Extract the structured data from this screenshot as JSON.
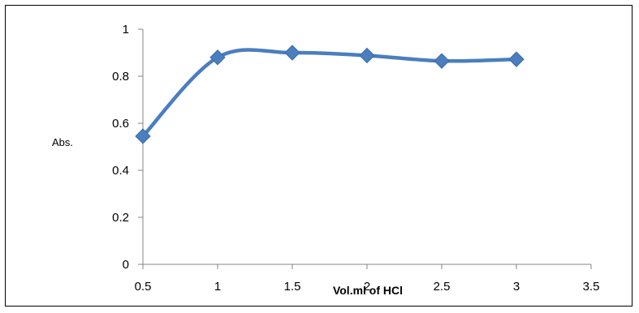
{
  "chart_data": {
    "type": "line",
    "title": "",
    "xlabel": "Vol.ml of HCl",
    "ylabel": "Abs.",
    "xlim": [
      0.5,
      3.5
    ],
    "ylim": [
      0,
      1
    ],
    "x_ticks": [
      "0.5",
      "1",
      "1.5",
      "2",
      "2.5",
      "3",
      "3.5"
    ],
    "y_ticks": [
      "0",
      "0.2",
      "0.4",
      "0.6",
      "0.8",
      "1"
    ],
    "grid": false,
    "legend": "none",
    "smooth": true,
    "marker": "diamond",
    "color": "#4a7ebf",
    "series": [
      {
        "x": [
          0.5,
          1,
          1.5,
          2,
          2.5,
          3
        ],
        "y": [
          0.545,
          0.88,
          0.9,
          0.888,
          0.865,
          0.872
        ]
      }
    ]
  }
}
